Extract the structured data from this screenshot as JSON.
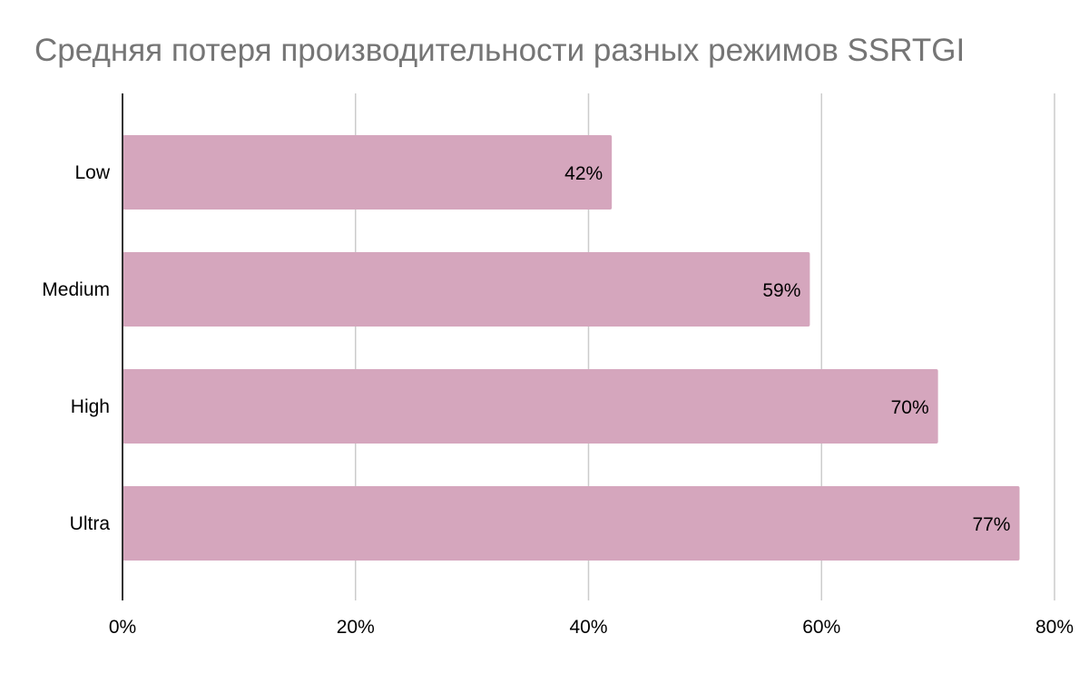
{
  "chart_data": {
    "type": "bar",
    "orientation": "horizontal",
    "title": "Средняя потеря производительности разных режимов SSRTGI",
    "xlabel": "",
    "ylabel": "",
    "categories": [
      "Low",
      "Medium",
      "High",
      "Ultra"
    ],
    "values": [
      42,
      59,
      70,
      77
    ],
    "data_labels": [
      "42%",
      "59%",
      "70%",
      "77%"
    ],
    "xlim": [
      0,
      80
    ],
    "x_ticks": [
      0,
      20,
      40,
      60,
      80
    ],
    "x_tick_labels": [
      "0%",
      "20%",
      "40%",
      "60%",
      "80%"
    ],
    "grid": true,
    "legend": "none",
    "colors": {
      "bar": "#d5a6bd",
      "grid": "#cccccc",
      "axis": "#333333",
      "title": "#757575",
      "text": "#000000"
    }
  }
}
